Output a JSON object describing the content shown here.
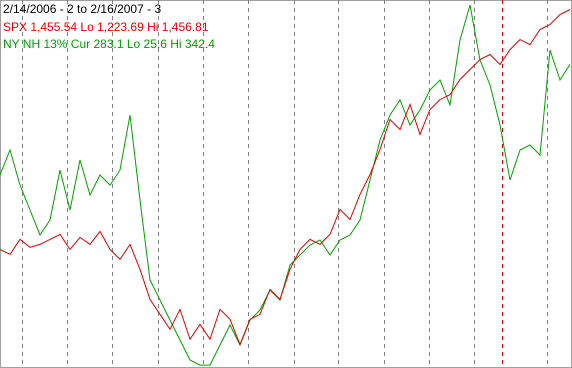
{
  "chart_data": {
    "type": "line",
    "title": "2/14/2006 - 2 to 2/16/2007 - 3",
    "categories": [
      null,
      null,
      null,
      null,
      null,
      null,
      null,
      null,
      null,
      null,
      null,
      null,
      null,
      null,
      null,
      null,
      null,
      null,
      null,
      null,
      null,
      null,
      null,
      null,
      null,
      null,
      null,
      null,
      null,
      null,
      null,
      null,
      null,
      null,
      null,
      null,
      null,
      null,
      null,
      null,
      null,
      null,
      null,
      null,
      null,
      null,
      null,
      null,
      null,
      null,
      null,
      null,
      null,
      null,
      null,
      null,
      null,
      null
    ],
    "ylim": [
      1211,
      1462
    ],
    "y2lim": [
      24,
      338
    ],
    "series": [
      {
        "name": "SPX 1,455.54 Lo 1,223.69 Hi 1,456.81",
        "color": "#e00000",
        "values": [
          1291.9,
          1288.5,
          1298.7,
          1293.3,
          1295.3,
          1298.7,
          1302.1,
          1291.9,
          1300.1,
          1295.3,
          1304.2,
          1291.9,
          1285.1,
          1295.3,
          1278.3,
          1257.8,
          1247.6,
          1237.4,
          1251.0,
          1230.6,
          1240.8,
          1230.6,
          1251.0,
          1244.2,
          1227.1,
          1244.2,
          1247.6,
          1264.6,
          1257.8,
          1278.3,
          1291.9,
          1298.7,
          1295.3,
          1302.1,
          1319.2,
          1312.3,
          1329.4,
          1343.0,
          1360.1,
          1380.5,
          1373.7,
          1390.7,
          1370.3,
          1387.3,
          1394.1,
          1397.5,
          1407.8,
          1414.6,
          1421.4,
          1424.8,
          1418.0,
          1428.2,
          1435.0,
          1431.6,
          1441.9,
          1445.3,
          1452.1,
          1455.5
        ]
      },
      {
        "name": "NY NH 13% Cur 283.1 Lo 25.6 Hi 342.4",
        "color": "#00a000",
        "axis": "y2",
        "values": [
          188.7,
          210.0,
          180.1,
          158.8,
          137.5,
          150.3,
          192.9,
          158.8,
          201.5,
          171.6,
          188.7,
          180.1,
          192.9,
          239.9,
          167.3,
          99.1,
          82.0,
          64.9,
          47.9,
          30.8,
          26.5,
          26.5,
          43.6,
          60.7,
          43.6,
          64.9,
          73.5,
          90.5,
          82.0,
          111.9,
          120.4,
          128.9,
          133.2,
          120.4,
          133.2,
          137.5,
          150.3,
          184.4,
          218.5,
          239.9,
          252.7,
          231.3,
          244.1,
          261.2,
          269.7,
          248.4,
          303.9,
          333.7,
          286.8,
          265.5,
          231.3,
          184.4,
          210.0,
          214.3,
          205.7,
          295.3,
          269.7,
          283.1
        ]
      }
    ]
  }
}
